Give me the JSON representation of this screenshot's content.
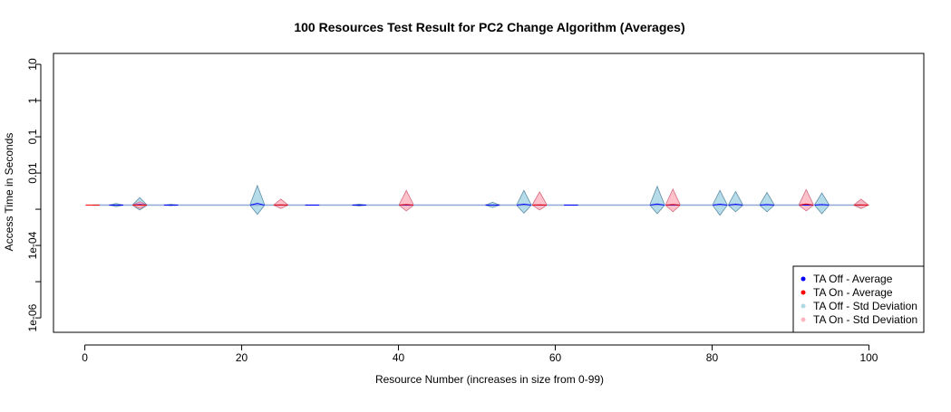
{
  "chart_data": {
    "type": "line",
    "title": "100 Resources Test Result for PC2 Change Algorithm (Averages)",
    "xlabel": "Resource Number (increases in size from 0-99)",
    "ylabel": "Access Time in Seconds",
    "xlim": [
      -4,
      107
    ],
    "ylim": [
      4e-07,
      20
    ],
    "y_scale": "log",
    "grid": false,
    "legend_position": "bottom-right",
    "x_ticks": [
      0,
      20,
      40,
      60,
      80,
      100
    ],
    "x_tick_labels": [
      "0",
      "20",
      "40",
      "60",
      "80",
      "100"
    ],
    "y_ticks": [
      1e-06,
      1e-05,
      0.0001,
      0.001,
      0.01,
      0.1,
      1,
      10
    ],
    "y_tick_labels": [
      "1e-06",
      "",
      "1e-04",
      "",
      "0.01",
      "0.1",
      "1",
      "10"
    ],
    "baseline": 0.0013,
    "series": [
      {
        "name": "TA Off - Average",
        "color": "#0000ff",
        "x": [
          1,
          4,
          7,
          11,
          22,
          25,
          29,
          35,
          41,
          52,
          56,
          58,
          62,
          73,
          75,
          81,
          83,
          87,
          92,
          94,
          99
        ],
        "values": [
          0.0013,
          0.0013,
          0.00135,
          0.0013,
          0.00145,
          0.0013,
          0.0013,
          0.0013,
          0.0013,
          0.0013,
          0.00138,
          0.0013,
          0.0013,
          0.0014,
          0.0013,
          0.00138,
          0.00138,
          0.00135,
          0.0013,
          0.00135,
          0.0013
        ]
      },
      {
        "name": "TA On - Average",
        "color": "#ff0000",
        "x": [
          1,
          7,
          25,
          41,
          58,
          75,
          92,
          99
        ],
        "values": [
          0.0013,
          0.0013,
          0.00132,
          0.00135,
          0.00132,
          0.00135,
          0.0014,
          0.00132
        ]
      },
      {
        "name": "TA Off - Std Deviation",
        "color": "#add8e6",
        "x": [
          4,
          7,
          11,
          22,
          35,
          52,
          56,
          73,
          81,
          83,
          87,
          94,
          99
        ],
        "upper": [
          0.00145,
          0.0021,
          0.00138,
          0.0045,
          0.0014,
          0.00155,
          0.0033,
          0.0043,
          0.0033,
          0.0031,
          0.0029,
          0.0028,
          0.0017
        ],
        "lower": [
          0.00118,
          0.00095,
          0.00125,
          0.00072,
          0.00122,
          0.00112,
          0.00078,
          0.00075,
          0.00068,
          0.00085,
          0.00085,
          0.00075,
          0.00105
        ]
      },
      {
        "name": "TA On - Std Deviation",
        "color": "#ffb6c1",
        "x": [
          7,
          25,
          41,
          58,
          75,
          92,
          99
        ],
        "upper": [
          0.0016,
          0.0019,
          0.0033,
          0.003,
          0.0036,
          0.0035,
          0.0019
        ],
        "lower": [
          0.00105,
          0.00105,
          0.0009,
          0.00095,
          0.00085,
          0.0009,
          0.00105
        ]
      }
    ]
  }
}
